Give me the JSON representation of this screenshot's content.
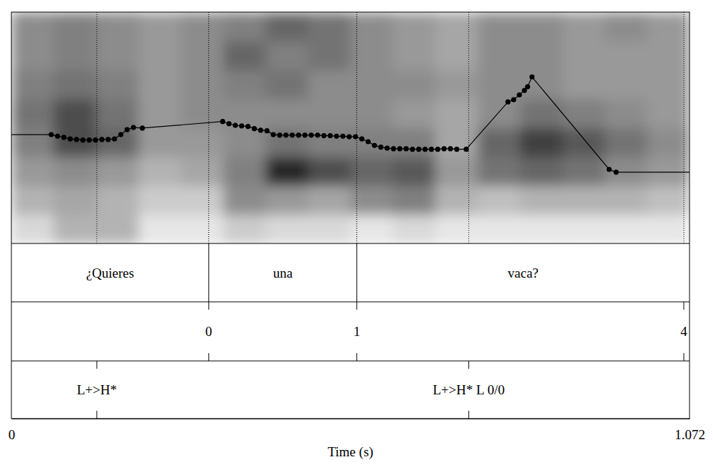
{
  "chart_data": {
    "type": "line",
    "xlabel": "Time (s)",
    "xlim": [
      0,
      1.072
    ],
    "xticks": [
      0,
      1.072
    ],
    "ylim": [
      75,
      500
    ],
    "tick_labels": "x",
    "color": "#000000",
    "marker": "circle",
    "x": [
      0.063,
      0.073,
      0.083,
      0.093,
      0.103,
      0.113,
      0.123,
      0.133,
      0.143,
      0.153,
      0.163,
      0.173,
      0.183,
      0.193,
      0.207,
      0.334,
      0.344,
      0.354,
      0.364,
      0.374,
      0.384,
      0.394,
      0.404,
      0.414,
      0.424,
      0.434,
      0.444,
      0.454,
      0.464,
      0.474,
      0.484,
      0.494,
      0.504,
      0.514,
      0.524,
      0.534,
      0.544,
      0.554,
      0.564,
      0.574,
      0.584,
      0.594,
      0.604,
      0.614,
      0.624,
      0.634,
      0.644,
      0.654,
      0.664,
      0.674,
      0.684,
      0.694,
      0.704,
      0.719,
      0.785,
      0.794,
      0.803,
      0.811,
      0.816,
      0.823,
      0.945,
      0.956
    ],
    "values": [
      275,
      272,
      270,
      267,
      266,
      265,
      265,
      265,
      266,
      266,
      267,
      275,
      284,
      288,
      287,
      299,
      295,
      292,
      291,
      290,
      286,
      283,
      282,
      275,
      274,
      274,
      274,
      274,
      274,
      274,
      274,
      273,
      273,
      272,
      272,
      271,
      271,
      267,
      262,
      255,
      252,
      250,
      249,
      249,
      249,
      248,
      248,
      248,
      248,
      248,
      249,
      249,
      248,
      248,
      335,
      339,
      348,
      356,
      363,
      381,
      211,
      206
    ],
    "spectrogram": {
      "frequency_range": [
        0,
        5000
      ],
      "time_bins": [
        0,
        0.067,
        0.134,
        0.201,
        0.268,
        0.335,
        0.402,
        0.469,
        0.536,
        0.603,
        0.67,
        0.737,
        0.804,
        0.871,
        0.938,
        1.005,
        1.072
      ],
      "frequency_bins": [
        0,
        625,
        1250,
        1875,
        2500,
        3125,
        3750,
        4375,
        5000
      ],
      "levels": [
        [
          0.15,
          0.3,
          0.3,
          0.1,
          0.1,
          0.2,
          0.15,
          0.15,
          0.1,
          0.15,
          0.1,
          0.1,
          0.1,
          0.1,
          0.1,
          0.1
        ],
        [
          0.3,
          0.35,
          0.3,
          0.2,
          0.2,
          0.45,
          0.4,
          0.35,
          0.45,
          0.5,
          0.3,
          0.25,
          0.3,
          0.3,
          0.3,
          0.25
        ],
        [
          0.4,
          0.45,
          0.4,
          0.3,
          0.35,
          0.5,
          0.85,
          0.7,
          0.6,
          0.65,
          0.4,
          0.55,
          0.6,
          0.55,
          0.45,
          0.4
        ],
        [
          0.5,
          0.7,
          0.6,
          0.4,
          0.4,
          0.45,
          0.55,
          0.5,
          0.5,
          0.5,
          0.35,
          0.6,
          0.75,
          0.65,
          0.55,
          0.45
        ],
        [
          0.55,
          0.7,
          0.55,
          0.4,
          0.45,
          0.45,
          0.45,
          0.45,
          0.45,
          0.4,
          0.35,
          0.45,
          0.55,
          0.5,
          0.45,
          0.4
        ],
        [
          0.5,
          0.55,
          0.5,
          0.4,
          0.45,
          0.5,
          0.55,
          0.45,
          0.45,
          0.45,
          0.4,
          0.45,
          0.45,
          0.4,
          0.4,
          0.4
        ],
        [
          0.45,
          0.5,
          0.45,
          0.4,
          0.45,
          0.6,
          0.5,
          0.55,
          0.45,
          0.4,
          0.35,
          0.45,
          0.45,
          0.4,
          0.4,
          0.4
        ],
        [
          0.45,
          0.5,
          0.45,
          0.4,
          0.45,
          0.5,
          0.6,
          0.55,
          0.45,
          0.4,
          0.35,
          0.45,
          0.45,
          0.4,
          0.45,
          0.4
        ]
      ]
    },
    "tiers": [
      {
        "intervals": [
          {
            "start": 0,
            "end": 0.312,
            "text": "¿Quieres"
          },
          {
            "start": 0.312,
            "end": 0.546,
            "text": "una"
          },
          {
            "start": 0.546,
            "end": 1.072,
            "text": "vaca?"
          }
        ]
      },
      {
        "points": [
          {
            "time": 0.312,
            "text": "0"
          },
          {
            "time": 0.546,
            "text": "1"
          },
          {
            "time": 1.063,
            "text": "4"
          }
        ]
      },
      {
        "points": [
          {
            "time": 0.135,
            "text": "L+>H*"
          },
          {
            "time": 0.723,
            "text": "L+>H* L 0/0"
          }
        ]
      }
    ]
  }
}
